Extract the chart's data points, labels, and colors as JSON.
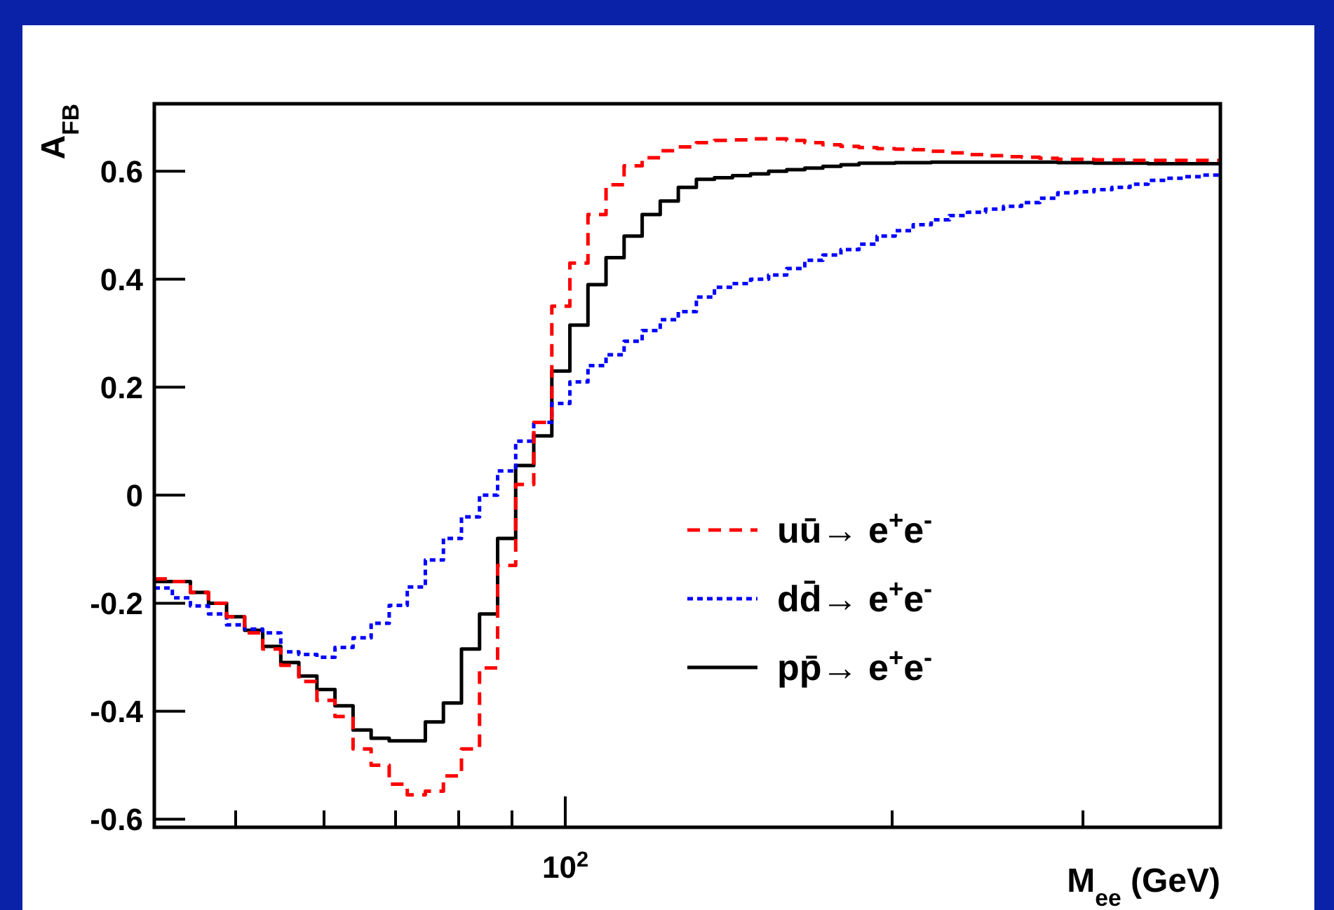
{
  "chart_data": {
    "type": "step",
    "xlabel": "M$_{ee}$ (GeV)",
    "ylabel": "A$_{FB}$",
    "annotations": [
      "10$^{2}$"
    ],
    "ylim": [
      -0.615,
      0.725
    ],
    "categories": [
      null,
      null,
      null,
      null,
      null,
      null,
      null,
      null,
      null,
      null,
      null,
      null,
      null,
      null,
      null,
      null,
      null,
      null,
      null,
      null,
      null,
      null,
      null,
      null,
      null,
      null,
      null,
      null,
      null,
      null,
      null,
      null,
      null,
      null,
      null,
      null,
      null,
      null,
      null,
      null,
      null,
      null,
      null,
      null,
      null,
      null,
      null,
      null,
      null,
      null,
      null,
      null,
      null,
      null,
      null,
      null,
      null,
      null,
      null,
      null
    ],
    "yticks": [
      -0.6,
      -0.4,
      -0.2,
      0,
      0.2,
      0.4,
      0.6
    ],
    "grid": false,
    "legend": "right",
    "series": [
      {
        "name": "uū→ e$^{+}$e$^{-}$",
        "color": "#ff0000",
        "line_style": "dashed",
        "values": [
          -0.155,
          -0.16,
          -0.18,
          -0.2,
          -0.225,
          -0.255,
          -0.285,
          -0.315,
          -0.345,
          -0.38,
          -0.41,
          -0.47,
          -0.5,
          -0.535,
          -0.555,
          -0.548,
          -0.52,
          -0.47,
          -0.32,
          -0.13,
          0.02,
          0.135,
          0.35,
          0.43,
          0.52,
          0.575,
          0.61,
          0.625,
          0.638,
          0.645,
          0.653,
          0.657,
          0.658,
          0.66,
          0.66,
          0.657,
          0.653,
          0.649,
          0.646,
          0.644,
          0.642,
          0.641,
          0.64,
          0.637,
          0.634,
          0.631,
          0.629,
          0.627,
          0.626,
          0.624,
          0.622,
          0.622,
          0.621,
          0.621,
          0.62,
          0.62,
          0.62,
          0.62,
          0.62,
          0.62
        ]
      },
      {
        "name": "dd̄→ e$^{+}$e$^{-}$",
        "color": "#0000ff",
        "line_style": "dotted",
        "values": [
          -0.172,
          -0.19,
          -0.205,
          -0.22,
          -0.24,
          -0.248,
          -0.255,
          -0.29,
          -0.295,
          -0.3,
          -0.282,
          -0.264,
          -0.237,
          -0.204,
          -0.17,
          -0.12,
          -0.08,
          -0.04,
          0,
          0.045,
          0.1,
          0.135,
          0.17,
          0.21,
          0.24,
          0.26,
          0.285,
          0.305,
          0.325,
          0.34,
          0.367,
          0.385,
          0.392,
          0.4,
          0.408,
          0.42,
          0.435,
          0.445,
          0.455,
          0.465,
          0.48,
          0.49,
          0.501,
          0.51,
          0.518,
          0.524,
          0.53,
          0.535,
          0.542,
          0.55,
          0.56,
          0.562,
          0.566,
          0.57,
          0.576,
          0.583,
          0.587,
          0.59,
          0.593,
          0.59
        ]
      },
      {
        "name": "pp̄→ e$^{+}$e$^{-}$",
        "color": "#000000",
        "line_style": "solid",
        "values": [
          -0.16,
          -0.16,
          -0.18,
          -0.2,
          -0.225,
          -0.25,
          -0.28,
          -0.31,
          -0.335,
          -0.36,
          -0.39,
          -0.435,
          -0.45,
          -0.455,
          -0.455,
          -0.42,
          -0.385,
          -0.285,
          -0.22,
          -0.08,
          0.055,
          0.11,
          0.23,
          0.315,
          0.39,
          0.44,
          0.48,
          0.52,
          0.545,
          0.57,
          0.585,
          0.588,
          0.592,
          0.595,
          0.6,
          0.603,
          0.606,
          0.609,
          0.612,
          0.615,
          0.615,
          0.616,
          0.616,
          0.617,
          0.617,
          0.617,
          0.617,
          0.617,
          0.617,
          0.617,
          0.616,
          0.616,
          0.615,
          0.615,
          0.615,
          0.614,
          0.614,
          0.614,
          0.614,
          0.614
        ]
      }
    ]
  }
}
